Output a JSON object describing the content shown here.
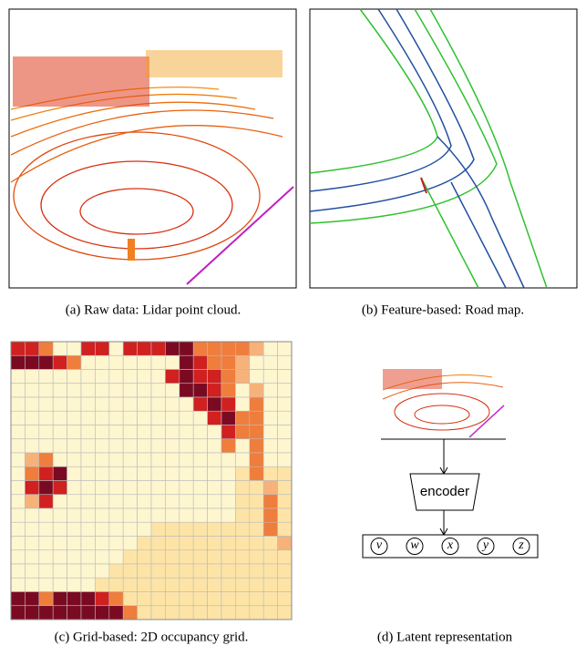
{
  "figure": {
    "panels": [
      {
        "caption": "(a) Raw data: Lidar point cloud."
      },
      {
        "caption": "(b) Feature-based: Road map."
      },
      {
        "caption": "(c) Grid-based: 2D occupancy grid."
      },
      {
        "caption": "(d) Latent representation",
        "encoder": "encoder",
        "latents": [
          "v",
          "w",
          "x",
          "y",
          "z"
        ]
      }
    ]
  }
}
